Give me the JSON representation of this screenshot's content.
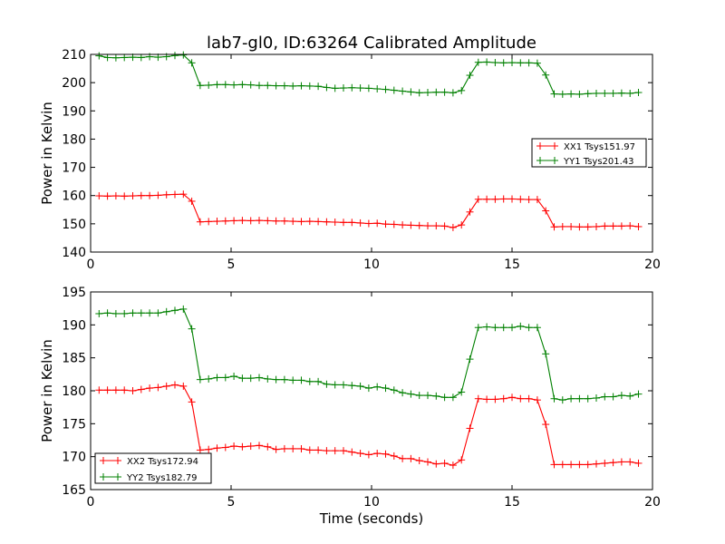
{
  "title": "lab7-gl0, ID:63264 Calibrated Amplitude",
  "chart_data": [
    {
      "type": "line",
      "title": "lab7-gl0, ID:63264 Calibrated Amplitude",
      "xlabel": "",
      "ylabel": "Power in Kelvin",
      "xlim": [
        0,
        20
      ],
      "ylim": [
        140,
        210
      ],
      "xticks": [
        "0",
        "5",
        "10",
        "15",
        "20"
      ],
      "yticks": [
        "140",
        "150",
        "160",
        "170",
        "180",
        "190",
        "200",
        "210"
      ],
      "grid": false,
      "legend_position": "right",
      "x": [
        0.3,
        0.6,
        0.9,
        1.2,
        1.5,
        1.8,
        2.1,
        2.4,
        2.7,
        3.0,
        3.3,
        3.6,
        3.9,
        4.2,
        4.5,
        4.8,
        5.1,
        5.4,
        5.7,
        6.0,
        6.3,
        6.6,
        6.9,
        7.2,
        7.5,
        7.8,
        8.1,
        8.4,
        8.7,
        9.0,
        9.3,
        9.6,
        9.9,
        10.2,
        10.5,
        10.8,
        11.1,
        11.4,
        11.7,
        12.0,
        12.3,
        12.6,
        12.9,
        13.2,
        13.5,
        13.8,
        14.1,
        14.4,
        14.7,
        15.0,
        15.3,
        15.6,
        15.9,
        16.2,
        16.5,
        16.8,
        17.1,
        17.4,
        17.7,
        18.0,
        18.3,
        18.6,
        18.9,
        19.2,
        19.5
      ],
      "series": [
        {
          "name": "XX1 Tsys151.97",
          "color": "#ff0000",
          "values": [
            159.9,
            159.8,
            159.9,
            159.8,
            159.9,
            160.0,
            160.0,
            160.1,
            160.3,
            160.4,
            160.5,
            158.0,
            150.7,
            150.8,
            150.9,
            151.0,
            151.1,
            151.2,
            151.1,
            151.2,
            151.1,
            151.0,
            151.0,
            150.9,
            150.8,
            150.9,
            150.8,
            150.7,
            150.6,
            150.5,
            150.5,
            150.3,
            150.1,
            150.2,
            149.9,
            149.8,
            149.6,
            149.5,
            149.4,
            149.3,
            149.3,
            149.2,
            148.7,
            149.6,
            154.2,
            158.7,
            158.7,
            158.7,
            158.8,
            158.8,
            158.7,
            158.6,
            158.6,
            154.6,
            148.9,
            149.0,
            149.0,
            148.9,
            148.9,
            149.0,
            149.2,
            149.2,
            149.2,
            149.3,
            149.0
          ]
        },
        {
          "name": "YY1 Tsys201.43",
          "color": "#008000",
          "values": [
            209.5,
            208.9,
            208.8,
            208.9,
            209.0,
            208.9,
            209.2,
            209.0,
            209.2,
            209.6,
            209.8,
            207.0,
            199.0,
            199.1,
            199.3,
            199.3,
            199.2,
            199.3,
            199.2,
            199.0,
            199.0,
            198.9,
            198.9,
            198.8,
            198.9,
            198.8,
            198.7,
            198.3,
            198.0,
            198.1,
            198.2,
            198.1,
            198.0,
            197.8,
            197.6,
            197.3,
            197.0,
            196.7,
            196.4,
            196.5,
            196.6,
            196.6,
            196.4,
            197.2,
            202.6,
            207.2,
            207.3,
            207.1,
            207.0,
            207.1,
            207.0,
            207.0,
            206.9,
            202.7,
            196.0,
            195.9,
            196.0,
            195.9,
            196.1,
            196.2,
            196.2,
            196.2,
            196.3,
            196.2,
            196.5
          ]
        }
      ]
    },
    {
      "type": "line",
      "title": "",
      "xlabel": "Time (seconds)",
      "ylabel": "Power in Kelvin",
      "xlim": [
        0,
        20
      ],
      "ylim": [
        165,
        195
      ],
      "xticks": [
        "0",
        "5",
        "10",
        "15",
        "20"
      ],
      "yticks": [
        "165",
        "170",
        "175",
        "180",
        "185",
        "190",
        "195"
      ],
      "grid": false,
      "legend_position": "bottom-left",
      "x": [
        0.3,
        0.6,
        0.9,
        1.2,
        1.5,
        1.8,
        2.1,
        2.4,
        2.7,
        3.0,
        3.3,
        3.6,
        3.9,
        4.2,
        4.5,
        4.8,
        5.1,
        5.4,
        5.7,
        6.0,
        6.3,
        6.6,
        6.9,
        7.2,
        7.5,
        7.8,
        8.1,
        8.4,
        8.7,
        9.0,
        9.3,
        9.6,
        9.9,
        10.2,
        10.5,
        10.8,
        11.1,
        11.4,
        11.7,
        12.0,
        12.3,
        12.6,
        12.9,
        13.2,
        13.5,
        13.8,
        14.1,
        14.4,
        14.7,
        15.0,
        15.3,
        15.6,
        15.9,
        16.2,
        16.5,
        16.8,
        17.1,
        17.4,
        17.7,
        18.0,
        18.3,
        18.6,
        18.9,
        19.2,
        19.5
      ],
      "series": [
        {
          "name": "XX2 Tsys172.94",
          "color": "#ff0000",
          "values": [
            180.1,
            180.1,
            180.1,
            180.1,
            180.0,
            180.2,
            180.4,
            180.5,
            180.7,
            180.9,
            180.7,
            178.3,
            171.0,
            171.1,
            171.3,
            171.4,
            171.6,
            171.5,
            171.6,
            171.7,
            171.5,
            171.1,
            171.2,
            171.2,
            171.2,
            171.0,
            171.0,
            170.9,
            170.9,
            170.9,
            170.7,
            170.5,
            170.3,
            170.5,
            170.4,
            170.1,
            169.7,
            169.7,
            169.4,
            169.2,
            168.9,
            169.0,
            168.7,
            169.5,
            174.3,
            178.8,
            178.7,
            178.7,
            178.8,
            179.0,
            178.8,
            178.8,
            178.6,
            174.9,
            168.8,
            168.8,
            168.8,
            168.8,
            168.8,
            168.9,
            169.0,
            169.1,
            169.2,
            169.2,
            169.0
          ]
        },
        {
          "name": "YY2 Tsys182.79",
          "color": "#008000",
          "values": [
            191.7,
            191.8,
            191.7,
            191.7,
            191.8,
            191.8,
            191.8,
            191.8,
            192.0,
            192.2,
            192.4,
            189.4,
            181.7,
            181.8,
            182.0,
            182.0,
            182.2,
            181.9,
            181.9,
            182.0,
            181.8,
            181.7,
            181.7,
            181.6,
            181.6,
            181.4,
            181.4,
            181.0,
            180.9,
            180.9,
            180.8,
            180.7,
            180.4,
            180.6,
            180.4,
            180.1,
            179.7,
            179.5,
            179.3,
            179.3,
            179.2,
            179.0,
            179.0,
            179.8,
            184.8,
            189.6,
            189.7,
            189.6,
            189.6,
            189.6,
            189.8,
            189.6,
            189.6,
            185.6,
            178.8,
            178.6,
            178.8,
            178.8,
            178.8,
            178.9,
            179.1,
            179.1,
            179.3,
            179.2,
            179.5
          ]
        }
      ]
    }
  ]
}
